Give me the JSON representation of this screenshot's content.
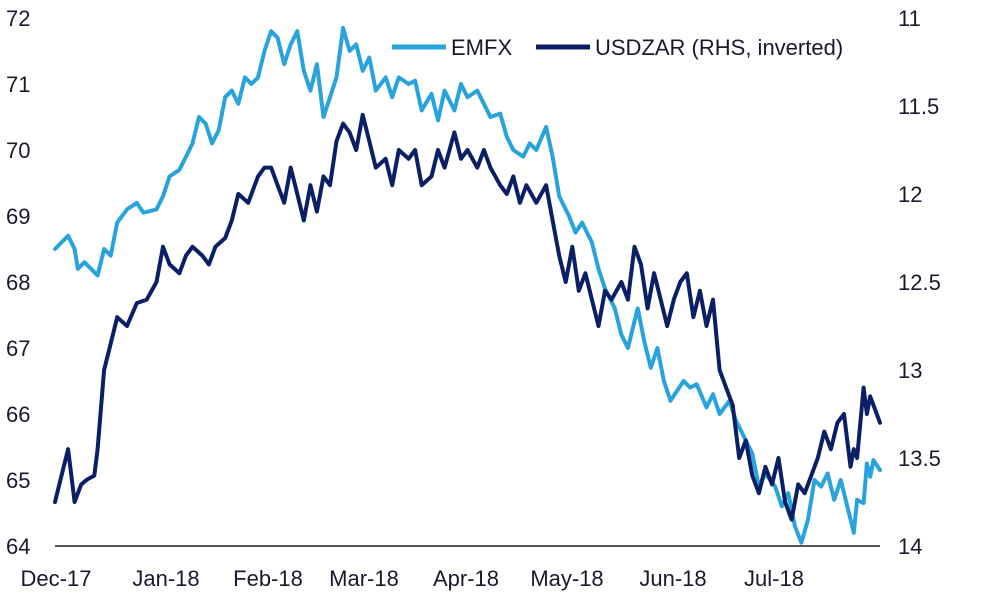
{
  "chart_data": {
    "type": "line",
    "title": "",
    "xlabel": "",
    "ylabel": "",
    "y2label": "",
    "grid": false,
    "legend_position": "top-right",
    "colors": {
      "EMFX": "#29a3dc",
      "USDZAR": "#0b1f66",
      "axis": "#1a1a2e"
    },
    "x_ticks": [
      "Dec-17",
      "Jan-18",
      "Feb-18",
      "Mar-18",
      "Apr-18",
      "May-18",
      "Jun-18",
      "Jul-18"
    ],
    "y_left": {
      "min": 64,
      "max": 72,
      "ticks": [
        "64",
        "65",
        "66",
        "67",
        "68",
        "69",
        "70",
        "71",
        "72"
      ]
    },
    "y_right": {
      "min": 11,
      "max": 14,
      "inverted": true,
      "ticks": [
        "11",
        "11.5",
        "12",
        "12.5",
        "13",
        "13.5",
        "14"
      ]
    },
    "x_domain": [
      "2017-12-01",
      "2018-08-10"
    ],
    "series": [
      {
        "name": "EMFX",
        "axis": "left",
        "points": [
          [
            "2017-12-01",
            68.5
          ],
          [
            "2017-12-03",
            68.6
          ],
          [
            "2017-12-05",
            68.7
          ],
          [
            "2017-12-07",
            68.5
          ],
          [
            "2017-12-08",
            68.2
          ],
          [
            "2017-12-10",
            68.3
          ],
          [
            "2017-12-12",
            68.2
          ],
          [
            "2017-12-14",
            68.1
          ],
          [
            "2017-12-16",
            68.5
          ],
          [
            "2017-12-18",
            68.4
          ],
          [
            "2017-12-20",
            68.9
          ],
          [
            "2017-12-23",
            69.1
          ],
          [
            "2017-12-26",
            69.2
          ],
          [
            "2017-12-28",
            69.05
          ],
          [
            "2018-01-01",
            69.1
          ],
          [
            "2018-01-03",
            69.3
          ],
          [
            "2018-01-05",
            69.6
          ],
          [
            "2018-01-08",
            69.7
          ],
          [
            "2018-01-10",
            69.9
          ],
          [
            "2018-01-12",
            70.1
          ],
          [
            "2018-01-14",
            70.5
          ],
          [
            "2018-01-16",
            70.4
          ],
          [
            "2018-01-18",
            70.1
          ],
          [
            "2018-01-20",
            70.3
          ],
          [
            "2018-01-22",
            70.8
          ],
          [
            "2018-01-24",
            70.9
          ],
          [
            "2018-01-26",
            70.7
          ],
          [
            "2018-01-28",
            71.1
          ],
          [
            "2018-01-30",
            71.0
          ],
          [
            "2018-02-01",
            71.1
          ],
          [
            "2018-02-03",
            71.5
          ],
          [
            "2018-02-05",
            71.8
          ],
          [
            "2018-02-07",
            71.7
          ],
          [
            "2018-02-09",
            71.3
          ],
          [
            "2018-02-11",
            71.6
          ],
          [
            "2018-02-13",
            71.8
          ],
          [
            "2018-02-15",
            71.2
          ],
          [
            "2018-02-17",
            70.9
          ],
          [
            "2018-02-19",
            71.3
          ],
          [
            "2018-02-21",
            70.5
          ],
          [
            "2018-02-23",
            70.8
          ],
          [
            "2018-02-25",
            71.1
          ],
          [
            "2018-02-27",
            71.85
          ],
          [
            "2018-03-01",
            71.5
          ],
          [
            "2018-03-03",
            71.6
          ],
          [
            "2018-03-05",
            71.2
          ],
          [
            "2018-03-07",
            71.4
          ],
          [
            "2018-03-09",
            70.9
          ],
          [
            "2018-03-12",
            71.1
          ],
          [
            "2018-03-14",
            70.8
          ],
          [
            "2018-03-16",
            71.1
          ],
          [
            "2018-03-19",
            71.0
          ],
          [
            "2018-03-21",
            71.05
          ],
          [
            "2018-03-23",
            70.6
          ],
          [
            "2018-03-26",
            70.85
          ],
          [
            "2018-03-28",
            70.45
          ],
          [
            "2018-03-30",
            70.9
          ],
          [
            "2018-04-02",
            70.6
          ],
          [
            "2018-04-04",
            71.0
          ],
          [
            "2018-04-06",
            70.8
          ],
          [
            "2018-04-09",
            70.9
          ],
          [
            "2018-04-11",
            70.7
          ],
          [
            "2018-04-13",
            70.5
          ],
          [
            "2018-04-16",
            70.55
          ],
          [
            "2018-04-18",
            70.2
          ],
          [
            "2018-04-20",
            70.0
          ],
          [
            "2018-04-23",
            69.9
          ],
          [
            "2018-04-25",
            70.1
          ],
          [
            "2018-04-27",
            70.0
          ],
          [
            "2018-04-30",
            70.35
          ],
          [
            "2018-05-02",
            69.9
          ],
          [
            "2018-05-04",
            69.3
          ],
          [
            "2018-05-07",
            69.0
          ],
          [
            "2018-05-09",
            68.75
          ],
          [
            "2018-05-11",
            68.9
          ],
          [
            "2018-05-14",
            68.6
          ],
          [
            "2018-05-16",
            68.2
          ],
          [
            "2018-05-18",
            67.9
          ],
          [
            "2018-05-21",
            67.6
          ],
          [
            "2018-05-23",
            67.2
          ],
          [
            "2018-05-25",
            67.0
          ],
          [
            "2018-05-28",
            67.6
          ],
          [
            "2018-05-30",
            67.1
          ],
          [
            "2018-06-01",
            66.7
          ],
          [
            "2018-06-03",
            67.0
          ],
          [
            "2018-06-05",
            66.5
          ],
          [
            "2018-06-07",
            66.2
          ],
          [
            "2018-06-09",
            66.35
          ],
          [
            "2018-06-11",
            66.5
          ],
          [
            "2018-06-13",
            66.4
          ],
          [
            "2018-06-15",
            66.45
          ],
          [
            "2018-06-18",
            66.1
          ],
          [
            "2018-06-20",
            66.3
          ],
          [
            "2018-06-22",
            66.0
          ],
          [
            "2018-06-25",
            66.2
          ],
          [
            "2018-06-27",
            65.9
          ],
          [
            "2018-06-29",
            65.7
          ],
          [
            "2018-07-02",
            65.4
          ],
          [
            "2018-07-04",
            64.9
          ],
          [
            "2018-07-06",
            65.1
          ],
          [
            "2018-07-09",
            64.9
          ],
          [
            "2018-07-11",
            64.6
          ],
          [
            "2018-07-13",
            64.8
          ],
          [
            "2018-07-15",
            64.3
          ],
          [
            "2018-07-17",
            64.05
          ],
          [
            "2018-07-19",
            64.4
          ],
          [
            "2018-07-21",
            65.0
          ],
          [
            "2018-07-23",
            64.9
          ],
          [
            "2018-07-25",
            65.1
          ],
          [
            "2018-07-27",
            64.7
          ],
          [
            "2018-07-29",
            65.0
          ],
          [
            "2018-07-31",
            64.6
          ],
          [
            "2018-08-02",
            64.2
          ],
          [
            "2018-08-03",
            64.7
          ],
          [
            "2018-08-05",
            64.65
          ],
          [
            "2018-08-06",
            65.25
          ],
          [
            "2018-08-07",
            65.05
          ],
          [
            "2018-08-08",
            65.3
          ],
          [
            "2018-08-10",
            65.15
          ]
        ]
      },
      {
        "name": "USDZAR (RHS, inverted)",
        "axis": "right",
        "points": [
          [
            "2017-12-01",
            13.75
          ],
          [
            "2017-12-03",
            13.6
          ],
          [
            "2017-12-05",
            13.45
          ],
          [
            "2017-12-07",
            13.75
          ],
          [
            "2017-12-09",
            13.65
          ],
          [
            "2017-12-11",
            13.62
          ],
          [
            "2017-12-13",
            13.6
          ],
          [
            "2017-12-14",
            13.45
          ],
          [
            "2017-12-16",
            13.0
          ],
          [
            "2017-12-18",
            12.85
          ],
          [
            "2017-12-20",
            12.7
          ],
          [
            "2017-12-23",
            12.75
          ],
          [
            "2017-12-26",
            12.62
          ],
          [
            "2017-12-29",
            12.6
          ],
          [
            "2018-01-01",
            12.5
          ],
          [
            "2018-01-03",
            12.3
          ],
          [
            "2018-01-05",
            12.4
          ],
          [
            "2018-01-08",
            12.45
          ],
          [
            "2018-01-10",
            12.35
          ],
          [
            "2018-01-12",
            12.3
          ],
          [
            "2018-01-15",
            12.35
          ],
          [
            "2018-01-17",
            12.4
          ],
          [
            "2018-01-19",
            12.3
          ],
          [
            "2018-01-22",
            12.25
          ],
          [
            "2018-01-24",
            12.15
          ],
          [
            "2018-01-26",
            12.0
          ],
          [
            "2018-01-29",
            12.05
          ],
          [
            "2018-02-01",
            11.9
          ],
          [
            "2018-02-03",
            11.85
          ],
          [
            "2018-02-05",
            11.85
          ],
          [
            "2018-02-07",
            11.95
          ],
          [
            "2018-02-09",
            12.05
          ],
          [
            "2018-02-11",
            11.85
          ],
          [
            "2018-02-13",
            12.0
          ],
          [
            "2018-02-15",
            12.15
          ],
          [
            "2018-02-17",
            11.95
          ],
          [
            "2018-02-19",
            12.1
          ],
          [
            "2018-02-21",
            11.9
          ],
          [
            "2018-02-23",
            11.95
          ],
          [
            "2018-02-25",
            11.7
          ],
          [
            "2018-02-27",
            11.6
          ],
          [
            "2018-03-01",
            11.65
          ],
          [
            "2018-03-03",
            11.75
          ],
          [
            "2018-03-05",
            11.55
          ],
          [
            "2018-03-07",
            11.7
          ],
          [
            "2018-03-09",
            11.85
          ],
          [
            "2018-03-12",
            11.8
          ],
          [
            "2018-03-14",
            11.95
          ],
          [
            "2018-03-16",
            11.75
          ],
          [
            "2018-03-19",
            11.8
          ],
          [
            "2018-03-21",
            11.75
          ],
          [
            "2018-03-23",
            11.95
          ],
          [
            "2018-03-26",
            11.9
          ],
          [
            "2018-03-28",
            11.75
          ],
          [
            "2018-03-30",
            11.85
          ],
          [
            "2018-04-02",
            11.65
          ],
          [
            "2018-04-04",
            11.8
          ],
          [
            "2018-04-06",
            11.75
          ],
          [
            "2018-04-09",
            11.85
          ],
          [
            "2018-04-11",
            11.75
          ],
          [
            "2018-04-13",
            11.85
          ],
          [
            "2018-04-16",
            11.95
          ],
          [
            "2018-04-18",
            12.0
          ],
          [
            "2018-04-20",
            11.9
          ],
          [
            "2018-04-22",
            12.05
          ],
          [
            "2018-04-24",
            11.95
          ],
          [
            "2018-04-27",
            12.05
          ],
          [
            "2018-04-30",
            11.95
          ],
          [
            "2018-05-02",
            12.15
          ],
          [
            "2018-05-04",
            12.35
          ],
          [
            "2018-05-06",
            12.5
          ],
          [
            "2018-05-08",
            12.3
          ],
          [
            "2018-05-10",
            12.55
          ],
          [
            "2018-05-12",
            12.45
          ],
          [
            "2018-05-14",
            12.6
          ],
          [
            "2018-05-16",
            12.75
          ],
          [
            "2018-05-18",
            12.55
          ],
          [
            "2018-05-20",
            12.6
          ],
          [
            "2018-05-23",
            12.5
          ],
          [
            "2018-05-25",
            12.6
          ],
          [
            "2018-05-27",
            12.3
          ],
          [
            "2018-05-29",
            12.4
          ],
          [
            "2018-05-31",
            12.65
          ],
          [
            "2018-06-02",
            12.45
          ],
          [
            "2018-06-04",
            12.6
          ],
          [
            "2018-06-06",
            12.75
          ],
          [
            "2018-06-08",
            12.6
          ],
          [
            "2018-06-10",
            12.5
          ],
          [
            "2018-06-12",
            12.45
          ],
          [
            "2018-06-14",
            12.7
          ],
          [
            "2018-06-16",
            12.55
          ],
          [
            "2018-06-18",
            12.75
          ],
          [
            "2018-06-20",
            12.6
          ],
          [
            "2018-06-22",
            13.0
          ],
          [
            "2018-06-24",
            13.1
          ],
          [
            "2018-06-26",
            13.2
          ],
          [
            "2018-06-28",
            13.5
          ],
          [
            "2018-06-30",
            13.4
          ],
          [
            "2018-07-02",
            13.6
          ],
          [
            "2018-07-04",
            13.7
          ],
          [
            "2018-07-06",
            13.55
          ],
          [
            "2018-07-08",
            13.65
          ],
          [
            "2018-07-10",
            13.5
          ],
          [
            "2018-07-12",
            13.75
          ],
          [
            "2018-07-14",
            13.85
          ],
          [
            "2018-07-16",
            13.65
          ],
          [
            "2018-07-18",
            13.7
          ],
          [
            "2018-07-20",
            13.6
          ],
          [
            "2018-07-22",
            13.5
          ],
          [
            "2018-07-24",
            13.35
          ],
          [
            "2018-07-26",
            13.45
          ],
          [
            "2018-07-28",
            13.3
          ],
          [
            "2018-07-30",
            13.25
          ],
          [
            "2018-08-01",
            13.55
          ],
          [
            "2018-08-02",
            13.45
          ],
          [
            "2018-08-03",
            13.5
          ],
          [
            "2018-08-05",
            13.1
          ],
          [
            "2018-08-06",
            13.25
          ],
          [
            "2018-08-07",
            13.15
          ],
          [
            "2018-08-08",
            13.2
          ],
          [
            "2018-08-10",
            13.3
          ]
        ]
      }
    ]
  }
}
